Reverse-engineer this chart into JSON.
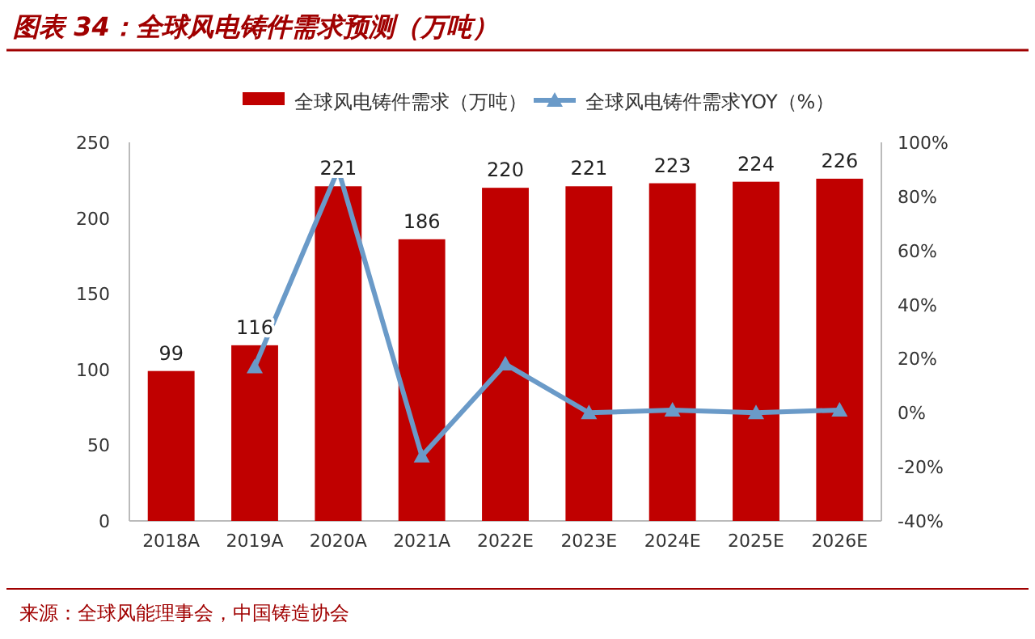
{
  "chart_data": {
    "type": "bar",
    "title": "图表 34：全球风电铸件需求预测（万吨）",
    "categories": [
      "2018A",
      "2019A",
      "2020A",
      "2021A",
      "2022E",
      "2023E",
      "2024E",
      "2025E",
      "2026E"
    ],
    "series": [
      {
        "name": "全球风电铸件需求（万吨）",
        "color": "#c00000",
        "values": [
          99,
          116,
          221,
          186,
          220,
          221,
          223,
          224,
          226
        ],
        "value_labels": [
          "99",
          "116",
          "221",
          "186",
          "220",
          "221",
          "223",
          "224",
          "226"
        ]
      },
      {
        "name": "全球风电铸件需求YOY（%）",
        "type": "line",
        "axis": "y2",
        "color": "#6a9ac8",
        "marker": "triangle",
        "values": [
          null,
          17,
          90,
          -16,
          18,
          0,
          1,
          0,
          1
        ]
      }
    ],
    "ylim": [
      0,
      250
    ],
    "yticks": [
      0,
      50,
      100,
      150,
      200,
      250
    ],
    "y2lim": [
      -40,
      100
    ],
    "y2ticks": [
      {
        "value": -40,
        "label": "-40%"
      },
      {
        "value": -20,
        "label": "-20%"
      },
      {
        "value": 0,
        "label": "0%"
      },
      {
        "value": 20,
        "label": "20%"
      },
      {
        "value": 40,
        "label": "40%"
      },
      {
        "value": 60,
        "label": "60%"
      },
      {
        "value": 80,
        "label": "80%"
      },
      {
        "value": 100,
        "label": "100%"
      }
    ],
    "legend": "top",
    "grid": false,
    "annotations": [
      "来源：全球风能理事会，中国铸造协会"
    ]
  }
}
